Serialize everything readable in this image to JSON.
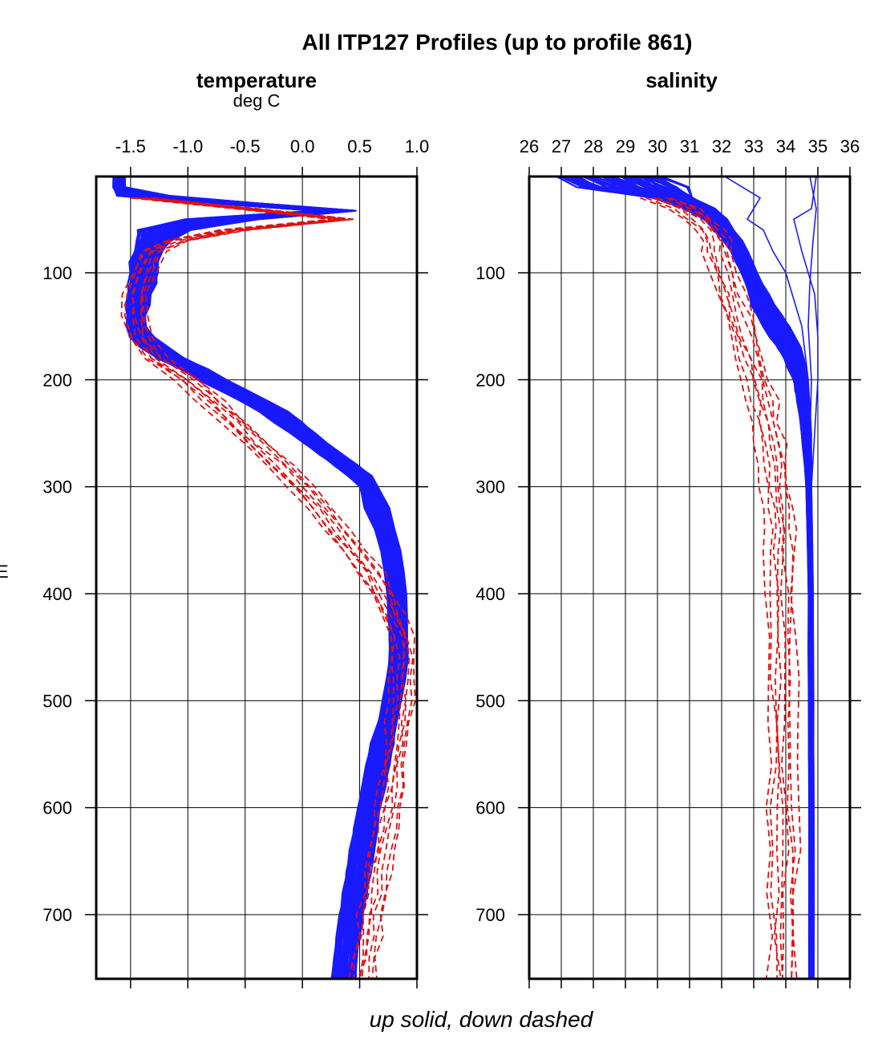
{
  "figure": {
    "title": "All ITP127 Profiles (up to profile 861)",
    "footer": "up solid, down dashed",
    "y_axis_label_fragment": "E",
    "colors": {
      "up": "#1a1aff",
      "down": "#e01010",
      "frame": "#000000",
      "grid": "#000000"
    }
  },
  "chart_data": [
    {
      "type": "line",
      "title": "temperature",
      "subtitle": "deg C",
      "xlabel": "temperature",
      "ylabel": "",
      "xlim": [
        -1.8,
        1.0
      ],
      "ylim": [
        760,
        10
      ],
      "y_inverted": true,
      "x_ticks": [
        -1.5,
        -1.0,
        -0.5,
        0.0,
        0.5,
        1.0
      ],
      "x_tick_labels": [
        "-1.5",
        "-1.0",
        "-0.5",
        "0.0",
        "0.5",
        "1.0"
      ],
      "y_ticks": [
        100,
        200,
        300,
        400,
        500,
        600,
        700
      ],
      "y_tick_labels": [
        "100",
        "200",
        "300",
        "400",
        "500",
        "600",
        "700"
      ],
      "grid": true,
      "series": [
        {
          "style": "up solid",
          "color": "#1a1aff",
          "depth": [
            10,
            20,
            28,
            35,
            42,
            50,
            60,
            70,
            80,
            90,
            100,
            110,
            120,
            130,
            140,
            150,
            160,
            170,
            180,
            190,
            200,
            210,
            220,
            230,
            240,
            250,
            260,
            270,
            280,
            290,
            300,
            320,
            340,
            360,
            380,
            400,
            420,
            440,
            460,
            480,
            500,
            520,
            540,
            560,
            580,
            600,
            620,
            640,
            660,
            680,
            700,
            720,
            740,
            760
          ],
          "center": [
            -1.6,
            -1.6,
            -1.4,
            -0.6,
            0.3,
            -0.7,
            -1.2,
            -1.3,
            -1.35,
            -1.38,
            -1.38,
            -1.4,
            -1.42,
            -1.44,
            -1.45,
            -1.45,
            -1.4,
            -1.3,
            -1.15,
            -0.95,
            -0.78,
            -0.6,
            -0.42,
            -0.25,
            -0.12,
            0.0,
            0.12,
            0.25,
            0.38,
            0.5,
            0.58,
            0.65,
            0.72,
            0.77,
            0.8,
            0.82,
            0.83,
            0.84,
            0.84,
            0.82,
            0.78,
            0.74,
            0.7,
            0.66,
            0.62,
            0.58,
            0.55,
            0.52,
            0.49,
            0.46,
            0.43,
            0.4,
            0.38,
            0.36
          ],
          "halfwidth": [
            0.05,
            0.05,
            0.22,
            0.22,
            0.18,
            0.3,
            0.22,
            0.14,
            0.12,
            0.12,
            0.12,
            0.12,
            0.1,
            0.1,
            0.08,
            0.08,
            0.1,
            0.12,
            0.12,
            0.12,
            0.12,
            0.12,
            0.12,
            0.12,
            0.12,
            0.1,
            0.1,
            0.1,
            0.1,
            0.1,
            0.08,
            0.1,
            0.08,
            0.08,
            0.08,
            0.08,
            0.08,
            0.08,
            0.08,
            0.08,
            0.08,
            0.08,
            0.1,
            0.1,
            0.1,
            0.1,
            0.1,
            0.1,
            0.1,
            0.1,
            0.1,
            0.1,
            0.1,
            0.1
          ]
        },
        {
          "style": "down dashed",
          "color": "#e01010",
          "depth": [
            30,
            40,
            50,
            60,
            70,
            80,
            100,
            120,
            140,
            160,
            180,
            200,
            220,
            240,
            260,
            280,
            300,
            320,
            340,
            360,
            380,
            400,
            420,
            440,
            460,
            480,
            500,
            520,
            540,
            560,
            580,
            600,
            620,
            640,
            660,
            680,
            700,
            720,
            740,
            760
          ],
          "x": [
            -1.4,
            -0.5,
            0.35,
            -0.6,
            -1.1,
            -1.3,
            -1.38,
            -1.45,
            -1.45,
            -1.42,
            -1.3,
            -1.0,
            -0.8,
            -0.6,
            -0.4,
            -0.2,
            -0.02,
            0.15,
            0.3,
            0.45,
            0.6,
            0.7,
            0.78,
            0.86,
            0.88,
            0.88,
            0.87,
            0.85,
            0.83,
            0.8,
            0.78,
            0.75,
            0.72,
            0.69,
            0.66,
            0.63,
            0.6,
            0.58,
            0.55,
            0.52
          ]
        }
      ]
    },
    {
      "type": "line",
      "title": "salinity",
      "xlabel": "salinity",
      "ylabel": "",
      "xlim": [
        26,
        36
      ],
      "ylim": [
        760,
        10
      ],
      "y_inverted": true,
      "x_ticks": [
        26,
        27,
        28,
        29,
        30,
        31,
        32,
        33,
        34,
        35,
        36
      ],
      "x_tick_labels": [
        "26",
        "27",
        "28",
        "29",
        "30",
        "31",
        "32",
        "33",
        "34",
        "35",
        "36"
      ],
      "y_ticks": [
        100,
        200,
        300,
        400,
        500,
        600,
        700
      ],
      "y_tick_labels": [
        "100",
        "200",
        "300",
        "400",
        "500",
        "600",
        "700"
      ],
      "grid": true,
      "series": [
        {
          "style": "up solid",
          "color": "#1a1aff",
          "depth": [
            10,
            20,
            30,
            40,
            50,
            60,
            70,
            80,
            90,
            100,
            110,
            120,
            130,
            140,
            150,
            160,
            170,
            180,
            190,
            200,
            210,
            220,
            240,
            260,
            280,
            300,
            350,
            400,
            450,
            500,
            550,
            600,
            650,
            700,
            760
          ],
          "center": [
            28.5,
            29.2,
            30.5,
            31.3,
            31.8,
            32.1,
            32.35,
            32.55,
            32.7,
            32.85,
            33.0,
            33.15,
            33.3,
            33.5,
            33.7,
            33.9,
            34.1,
            34.25,
            34.35,
            34.45,
            34.5,
            34.55,
            34.6,
            34.65,
            34.7,
            34.72,
            34.75,
            34.78,
            34.78,
            34.79,
            34.79,
            34.8,
            34.8,
            34.8,
            34.8
          ],
          "halfwidth": [
            1.6,
            1.6,
            0.6,
            0.45,
            0.35,
            0.3,
            0.28,
            0.26,
            0.25,
            0.25,
            0.25,
            0.3,
            0.35,
            0.38,
            0.4,
            0.38,
            0.35,
            0.3,
            0.26,
            0.22,
            0.2,
            0.18,
            0.14,
            0.12,
            0.1,
            0.08,
            0.07,
            0.07,
            0.07,
            0.07,
            0.07,
            0.07,
            0.07,
            0.07,
            0.07
          ]
        },
        {
          "style": "down dashed",
          "color": "#e01010",
          "depth": [
            30,
            40,
            50,
            60,
            70,
            80,
            100,
            120,
            140,
            160,
            180,
            200,
            220,
            240,
            260,
            280,
            300,
            320,
            340,
            360,
            400,
            440,
            480,
            520,
            560,
            600,
            640,
            680,
            720,
            760
          ],
          "x": [
            30.0,
            30.8,
            31.3,
            31.6,
            31.8,
            31.9,
            32.1,
            32.3,
            32.5,
            32.7,
            32.9,
            33.1,
            33.3,
            33.4,
            33.5,
            33.6,
            33.7,
            33.75,
            33.8,
            33.82,
            33.85,
            33.85,
            33.9,
            33.9,
            33.9,
            33.92,
            33.92,
            33.92,
            33.92,
            33.92
          ]
        }
      ]
    }
  ]
}
